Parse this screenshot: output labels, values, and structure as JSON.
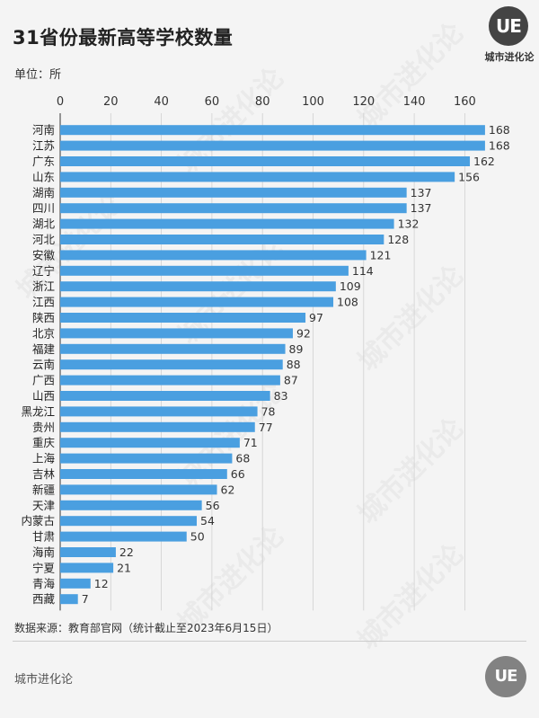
{
  "title": "31省份最新高等学校数量",
  "unit": "单位：所",
  "logo": {
    "mark": "UE",
    "caption": "城市进化论"
  },
  "watermark": "城市进化论",
  "source": "数据来源：教育部官网（统计截止至2023年6月15日）",
  "footer": {
    "brand": "城市进化论",
    "mark": "UE"
  },
  "colors": {
    "bar": "#4a9fe0",
    "grid": "#d0d0d0",
    "axis": "#555555"
  },
  "chart_data": {
    "type": "bar",
    "orientation": "horizontal",
    "title": "31省份最新高等学校数量",
    "xlim": [
      0,
      170
    ],
    "ticks": [
      0,
      20,
      40,
      60,
      80,
      100,
      120,
      140,
      160
    ],
    "grid": true,
    "categories": [
      "河南",
      "江苏",
      "广东",
      "山东",
      "湖南",
      "四川",
      "湖北",
      "河北",
      "安徽",
      "辽宁",
      "浙江",
      "江西",
      "陕西",
      "北京",
      "福建",
      "云南",
      "广西",
      "山西",
      "黑龙江",
      "贵州",
      "重庆",
      "上海",
      "吉林",
      "新疆",
      "天津",
      "内蒙古",
      "甘肃",
      "海南",
      "宁夏",
      "青海",
      "西藏"
    ],
    "values": [
      168,
      168,
      162,
      156,
      137,
      137,
      132,
      128,
      121,
      114,
      109,
      108,
      97,
      92,
      89,
      88,
      87,
      83,
      78,
      77,
      71,
      68,
      66,
      62,
      56,
      54,
      50,
      22,
      21,
      12,
      7
    ]
  }
}
